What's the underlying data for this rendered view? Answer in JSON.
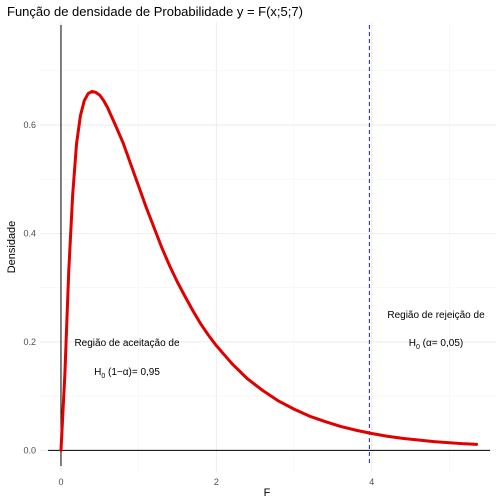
{
  "chart_data": {
    "type": "line",
    "title": "Função de densidade de Probabilidade y = F(x;5;7)",
    "xlabel": "F",
    "ylabel": "Densidade",
    "xlim": [
      -0.27,
      5.6
    ],
    "ylim": [
      -0.04,
      0.79
    ],
    "x_ticks": [
      0,
      2,
      4
    ],
    "x_tick_labels": [
      "0",
      "2",
      "4"
    ],
    "y_ticks": [
      0.0,
      0.2,
      0.4,
      0.6
    ],
    "y_tick_labels": [
      "0.0",
      "0.2",
      "0.4",
      "0.6"
    ],
    "grid": true,
    "critical_value": 3.97,
    "series": [
      {
        "color": "#e00000",
        "x": [
          0,
          0.05,
          0.1,
          0.15,
          0.2,
          0.25,
          0.3,
          0.35,
          0.4,
          0.45,
          0.5,
          0.55,
          0.6,
          0.7,
          0.8,
          0.9,
          1.0,
          1.1,
          1.2,
          1.3,
          1.4,
          1.5,
          1.6,
          1.7,
          1.8,
          1.9,
          2.0,
          2.2,
          2.4,
          2.6,
          2.8,
          3.0,
          3.2,
          3.4,
          3.6,
          3.8,
          4.0,
          4.2,
          4.4,
          4.6,
          4.8,
          5.0,
          5.2,
          5.35
        ],
        "values": [
          0.0,
          0.14,
          0.33,
          0.47,
          0.565,
          0.617,
          0.645,
          0.658,
          0.662,
          0.66,
          0.655,
          0.645,
          0.632,
          0.6,
          0.567,
          0.527,
          0.487,
          0.447,
          0.41,
          0.373,
          0.34,
          0.31,
          0.283,
          0.257,
          0.233,
          0.212,
          0.193,
          0.16,
          0.132,
          0.11,
          0.091,
          0.076,
          0.063,
          0.053,
          0.044,
          0.037,
          0.031,
          0.026,
          0.022,
          0.019,
          0.016,
          0.014,
          0.012,
          0.011
        ]
      }
    ],
    "annotations": {
      "acceptance_line1": "Região de aceitação de",
      "acceptance_h": "H",
      "acceptance_sub": "0",
      "acceptance_rest": " (1−α)= 0,95",
      "rejection_line1": "Região de rejeição de",
      "rejection_h": "H",
      "rejection_sub": "0",
      "rejection_rest": " (α= 0,05)"
    },
    "colors": {
      "curve": "#e00000",
      "critical_line": "#1a1acc",
      "axis_line": "#000000"
    }
  }
}
